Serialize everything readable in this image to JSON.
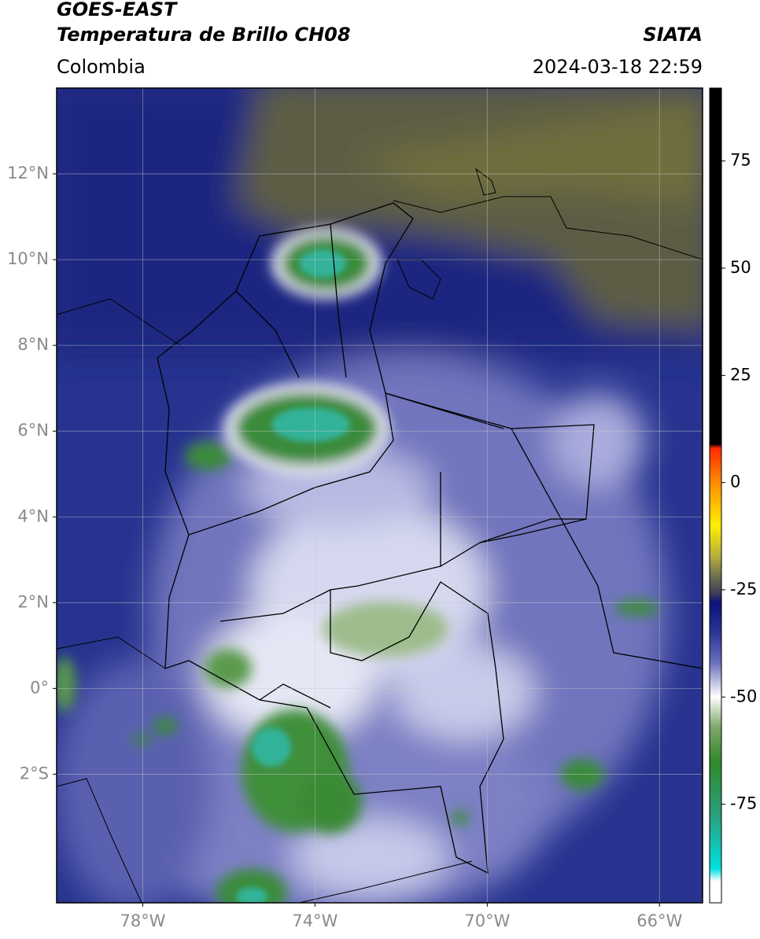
{
  "chart_data": {
    "type": "map",
    "title": "GOES-EAST",
    "subtitle": "Temperatura de Brillo CH08",
    "region": "Colombia",
    "source": "SIATA",
    "datetime": "2024-03-18 22:59",
    "xlim": [
      -80,
      -65
    ],
    "ylim": [
      -5,
      14
    ],
    "xticks": [
      {
        "value": -78,
        "label": "78°W"
      },
      {
        "value": -74,
        "label": "74°W"
      },
      {
        "value": -70,
        "label": "70°W"
      },
      {
        "value": -66,
        "label": "66°W"
      }
    ],
    "yticks": [
      {
        "value": 12,
        "label": "12°N"
      },
      {
        "value": 10,
        "label": "10°N"
      },
      {
        "value": 8,
        "label": "8°N"
      },
      {
        "value": 6,
        "label": "6°N"
      },
      {
        "value": 4,
        "label": "4°N"
      },
      {
        "value": 2,
        "label": "2°N"
      },
      {
        "value": 0,
        "label": "0°"
      },
      {
        "value": -2,
        "label": "2°S"
      }
    ],
    "grid": true,
    "colorbar": {
      "clim": [
        -98,
        92
      ],
      "ticks": [
        75,
        50,
        25,
        0,
        -25,
        -50,
        -75
      ],
      "colormap": [
        {
          "value": 92,
          "color": "#000000"
        },
        {
          "value": 9,
          "color": "#000000"
        },
        {
          "value": 8,
          "color": "#ff2a00"
        },
        {
          "value": 0,
          "color": "#ff8c00"
        },
        {
          "value": -10,
          "color": "#ffee00"
        },
        {
          "value": -17,
          "color": "#b8b040"
        },
        {
          "value": -22,
          "color": "#6e6e50"
        },
        {
          "value": -26,
          "color": "#3a3a5a"
        },
        {
          "value": -28,
          "color": "#0a127a"
        },
        {
          "value": -35,
          "color": "#2b3596"
        },
        {
          "value": -42,
          "color": "#6a70bb"
        },
        {
          "value": -50,
          "color": "#ffffff"
        },
        {
          "value": -57,
          "color": "#7fa86a"
        },
        {
          "value": -65,
          "color": "#2f8a2a"
        },
        {
          "value": -78,
          "color": "#2aa080"
        },
        {
          "value": -90,
          "color": "#00e0e0"
        },
        {
          "value": -93,
          "color": "#ffffff"
        },
        {
          "value": -98,
          "color": "#ffffff"
        }
      ]
    }
  }
}
